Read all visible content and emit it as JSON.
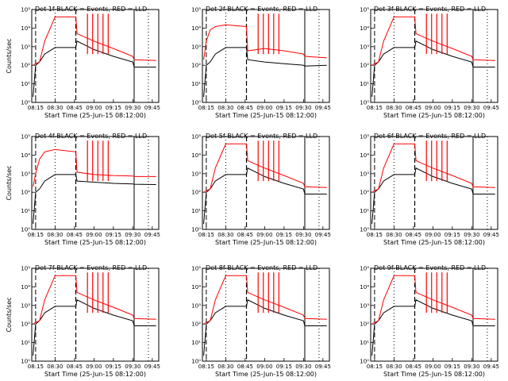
{
  "figure": {
    "ylabel": "Counts/sec",
    "xlabel": "Start Time (25-Jun-15 08:12:00)",
    "title_suffix": "BLACK = Events, RED = LLD",
    "x_ticks": [
      "08:15",
      "08:30",
      "08:45",
      "09:00",
      "09:15",
      "09:30",
      "09:45"
    ],
    "y_ticks": [
      "10⁰",
      "10¹",
      "10²",
      "10³",
      "10⁴",
      "10⁵"
    ]
  },
  "colors": {
    "events": "#000000",
    "lld": "#ff0000"
  },
  "chart_data": [
    {
      "type": "line",
      "title": "Det 1f",
      "xlabel": "Start Time (25-Jun-15 08:12:00)",
      "ylabel": "Counts/sec",
      "y_scale": "log",
      "ylim": [
        1,
        100000
      ],
      "series": [
        {
          "name": "BLACK = Events",
          "x": [
            "08:13",
            "08:15",
            "08:18",
            "08:22",
            "08:30",
            "08:46",
            "08:47",
            "09:00",
            "09:15",
            "09:30",
            "09:31",
            "09:48"
          ],
          "y": [
            2,
            100,
            150,
            400,
            900,
            900,
            2000,
            700,
            300,
            150,
            80,
            80
          ]
        },
        {
          "name": "RED = LLD",
          "x": [
            "08:13",
            "08:15",
            "08:18",
            "08:22",
            "08:30",
            "08:46",
            "08:47",
            "09:00",
            "09:15",
            "09:30",
            "09:31",
            "09:48"
          ],
          "y": [
            100,
            120,
            150,
            2000,
            40000,
            40000,
            5000,
            2000,
            800,
            300,
            200,
            180
          ]
        }
      ]
    },
    {
      "type": "line",
      "title": "Det 2f",
      "xlabel": "Start Time (25-Jun-15 08:12:00)",
      "ylabel": "Counts/sec",
      "y_scale": "log",
      "ylim": [
        1,
        100000
      ],
      "series": [
        {
          "name": "BLACK = Events",
          "x": [
            "08:13",
            "08:15",
            "08:18",
            "08:22",
            "08:30",
            "08:46",
            "08:47",
            "09:00",
            "09:15",
            "09:30",
            "09:31",
            "09:48"
          ],
          "y": [
            2,
            100,
            150,
            400,
            900,
            900,
            200,
            150,
            120,
            100,
            90,
            100
          ]
        },
        {
          "name": "RED = LLD",
          "x": [
            "08:13",
            "08:15",
            "08:18",
            "08:22",
            "08:30",
            "08:46",
            "08:47",
            "09:00",
            "09:15",
            "09:30",
            "09:31",
            "09:48"
          ],
          "y": [
            200,
            2000,
            8000,
            12000,
            15000,
            12000,
            600,
            800,
            600,
            400,
            300,
            250
          ]
        }
      ]
    },
    {
      "type": "line",
      "title": "Det 3f",
      "xlabel": "Start Time (25-Jun-15 08:12:00)",
      "ylabel": "Counts/sec",
      "y_scale": "log",
      "ylim": [
        1,
        100000
      ],
      "series": [
        {
          "name": "BLACK = Events",
          "x": [
            "08:13",
            "08:15",
            "08:18",
            "08:22",
            "08:30",
            "08:46",
            "08:47",
            "09:00",
            "09:15",
            "09:30",
            "09:31",
            "09:48"
          ],
          "y": [
            2,
            100,
            150,
            400,
            900,
            900,
            2000,
            700,
            300,
            150,
            80,
            80
          ]
        },
        {
          "name": "RED = LLD",
          "x": [
            "08:13",
            "08:15",
            "08:18",
            "08:22",
            "08:30",
            "08:46",
            "08:47",
            "09:00",
            "09:15",
            "09:30",
            "09:31",
            "09:48"
          ],
          "y": [
            100,
            120,
            150,
            2000,
            40000,
            40000,
            5000,
            2000,
            800,
            300,
            200,
            180
          ]
        }
      ]
    },
    {
      "type": "line",
      "title": "Det 4f",
      "xlabel": "Start Time (25-Jun-15 08:12:00)",
      "ylabel": "Counts/sec",
      "y_scale": "log",
      "ylim": [
        1,
        100000
      ],
      "series": [
        {
          "name": "BLACK = Events",
          "x": [
            "08:13",
            "08:15",
            "08:18",
            "08:22",
            "08:30",
            "08:46",
            "08:47",
            "09:00",
            "09:15",
            "09:30",
            "09:31",
            "09:48"
          ],
          "y": [
            2,
            100,
            150,
            400,
            900,
            900,
            400,
            350,
            300,
            280,
            270,
            260
          ]
        },
        {
          "name": "RED = LLD",
          "x": [
            "08:13",
            "08:15",
            "08:18",
            "08:22",
            "08:30",
            "08:46",
            "08:47",
            "09:00",
            "09:15",
            "09:30",
            "09:31",
            "09:48"
          ],
          "y": [
            200,
            1000,
            6000,
            15000,
            20000,
            15000,
            1200,
            900,
            800,
            750,
            700,
            700
          ]
        }
      ]
    },
    {
      "type": "line",
      "title": "Det 5f",
      "xlabel": "Start Time (25-Jun-15 08:12:00)",
      "ylabel": "Counts/sec",
      "y_scale": "log",
      "ylim": [
        1,
        100000
      ],
      "series": [
        {
          "name": "BLACK = Events",
          "x": [
            "08:13",
            "08:15",
            "08:18",
            "08:22",
            "08:30",
            "08:46",
            "08:47",
            "09:00",
            "09:15",
            "09:30",
            "09:31",
            "09:48"
          ],
          "y": [
            2,
            100,
            150,
            400,
            900,
            900,
            2000,
            700,
            300,
            150,
            80,
            80
          ]
        },
        {
          "name": "RED = LLD",
          "x": [
            "08:13",
            "08:15",
            "08:18",
            "08:22",
            "08:30",
            "08:46",
            "08:47",
            "09:00",
            "09:15",
            "09:30",
            "09:31",
            "09:48"
          ],
          "y": [
            100,
            120,
            150,
            2000,
            40000,
            40000,
            5000,
            2000,
            800,
            300,
            200,
            180
          ]
        }
      ]
    },
    {
      "type": "line",
      "title": "Det 6f",
      "xlabel": "Start Time (25-Jun-15 08:12:00)",
      "ylabel": "Counts/sec",
      "y_scale": "log",
      "ylim": [
        1,
        100000
      ],
      "series": [
        {
          "name": "BLACK = Events",
          "x": [
            "08:13",
            "08:15",
            "08:18",
            "08:22",
            "08:30",
            "08:46",
            "08:47",
            "09:00",
            "09:15",
            "09:30",
            "09:31",
            "09:48"
          ],
          "y": [
            2,
            100,
            150,
            400,
            900,
            900,
            2000,
            700,
            300,
            150,
            80,
            80
          ]
        },
        {
          "name": "RED = LLD",
          "x": [
            "08:13",
            "08:15",
            "08:18",
            "08:22",
            "08:30",
            "08:46",
            "08:47",
            "09:00",
            "09:15",
            "09:30",
            "09:31",
            "09:48"
          ],
          "y": [
            100,
            120,
            150,
            2000,
            40000,
            40000,
            5000,
            2000,
            800,
            300,
            200,
            180
          ]
        }
      ]
    },
    {
      "type": "line",
      "title": "Det 7f",
      "xlabel": "Start Time (25-Jun-15 08:12:00)",
      "ylabel": "Counts/sec",
      "y_scale": "log",
      "ylim": [
        1,
        100000
      ],
      "series": [
        {
          "name": "BLACK = Events",
          "x": [
            "08:13",
            "08:15",
            "08:18",
            "08:22",
            "08:30",
            "08:46",
            "08:47",
            "09:00",
            "09:15",
            "09:30",
            "09:31",
            "09:48"
          ],
          "y": [
            2,
            100,
            150,
            400,
            900,
            900,
            2000,
            700,
            300,
            150,
            80,
            80
          ]
        },
        {
          "name": "RED = LLD",
          "x": [
            "08:13",
            "08:15",
            "08:18",
            "08:22",
            "08:30",
            "08:46",
            "08:47",
            "09:00",
            "09:15",
            "09:30",
            "09:31",
            "09:48"
          ],
          "y": [
            100,
            120,
            150,
            2000,
            40000,
            40000,
            5000,
            2000,
            800,
            300,
            200,
            180
          ]
        }
      ]
    },
    {
      "type": "line",
      "title": "Det 8f",
      "xlabel": "Start Time (25-Jun-15 08:12:00)",
      "ylabel": "Counts/sec",
      "y_scale": "log",
      "ylim": [
        1,
        100000
      ],
      "series": [
        {
          "name": "BLACK = Events",
          "x": [
            "08:13",
            "08:15",
            "08:18",
            "08:22",
            "08:30",
            "08:46",
            "08:47",
            "09:00",
            "09:15",
            "09:30",
            "09:31",
            "09:48"
          ],
          "y": [
            2,
            100,
            150,
            400,
            900,
            900,
            2000,
            700,
            300,
            150,
            80,
            80
          ]
        },
        {
          "name": "RED = LLD",
          "x": [
            "08:13",
            "08:15",
            "08:18",
            "08:22",
            "08:30",
            "08:46",
            "08:47",
            "09:00",
            "09:15",
            "09:30",
            "09:31",
            "09:48"
          ],
          "y": [
            100,
            120,
            150,
            2000,
            40000,
            40000,
            5000,
            2000,
            800,
            300,
            200,
            180
          ]
        }
      ]
    },
    {
      "type": "line",
      "title": "Det 9f",
      "xlabel": "Start Time (25-Jun-15 08:12:00)",
      "ylabel": "Counts/sec",
      "y_scale": "log",
      "ylim": [
        1,
        100000
      ],
      "series": [
        {
          "name": "BLACK = Events",
          "x": [
            "08:13",
            "08:15",
            "08:18",
            "08:22",
            "08:30",
            "08:46",
            "08:47",
            "09:00",
            "09:15",
            "09:30",
            "09:31",
            "09:48"
          ],
          "y": [
            2,
            100,
            150,
            400,
            900,
            900,
            2000,
            700,
            300,
            150,
            80,
            80
          ]
        },
        {
          "name": "RED = LLD",
          "x": [
            "08:13",
            "08:15",
            "08:18",
            "08:22",
            "08:30",
            "08:46",
            "08:47",
            "09:00",
            "09:15",
            "09:30",
            "09:31",
            "09:48"
          ],
          "y": [
            100,
            120,
            150,
            2000,
            40000,
            40000,
            5000,
            2000,
            800,
            300,
            200,
            180
          ]
        }
      ]
    }
  ]
}
